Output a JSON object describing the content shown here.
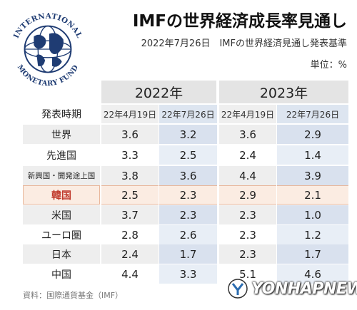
{
  "header": {
    "title": "IMFの世界経済成長率見通し",
    "subtitle": "2022年7月26日　IMFの世界経済見通し発表基準",
    "unit": "単位：%"
  },
  "logo": {
    "icon": "imf-seal-icon",
    "text": "INTERNATIONAL MONETARY FUND"
  },
  "table": {
    "row_header": "発表時期",
    "years": [
      "2022年",
      "2023年"
    ],
    "dates": [
      "22年4月19日",
      "22年7月26日",
      "22年4月19日",
      "22年7月26日"
    ],
    "rows": [
      {
        "label": "世界",
        "values": [
          "3.6",
          "3.2",
          "3.6",
          "2.9"
        ]
      },
      {
        "label": "先進国",
        "values": [
          "3.3",
          "2.5",
          "2.4",
          "1.4"
        ]
      },
      {
        "label": "新興国・開発途上国",
        "values": [
          "3.8",
          "3.6",
          "4.4",
          "3.9"
        ]
      },
      {
        "label": "韓国",
        "values": [
          "2.5",
          "2.3",
          "2.9",
          "2.1"
        ]
      },
      {
        "label": "米国",
        "values": [
          "3.7",
          "2.3",
          "2.3",
          "1.0"
        ]
      },
      {
        "label": "ユーロ圏",
        "values": [
          "2.8",
          "2.6",
          "2.3",
          "1.2"
        ]
      },
      {
        "label": "日本",
        "values": [
          "2.4",
          "1.7",
          "2.3",
          "1.7"
        ]
      },
      {
        "label": "中国",
        "values": [
          "4.4",
          "3.3",
          "5.1",
          "4.6"
        ]
      }
    ]
  },
  "footer": {
    "source": "資料：国際通貨基金（IMF）",
    "watermark": "YONHAPNEWS",
    "watermark_icon": "yonhap-logo-icon"
  },
  "colors": {
    "highlight_bg": "#fbece2",
    "highlight_text": "#c0392b",
    "new_column_bg": "#d9e1ee"
  }
}
